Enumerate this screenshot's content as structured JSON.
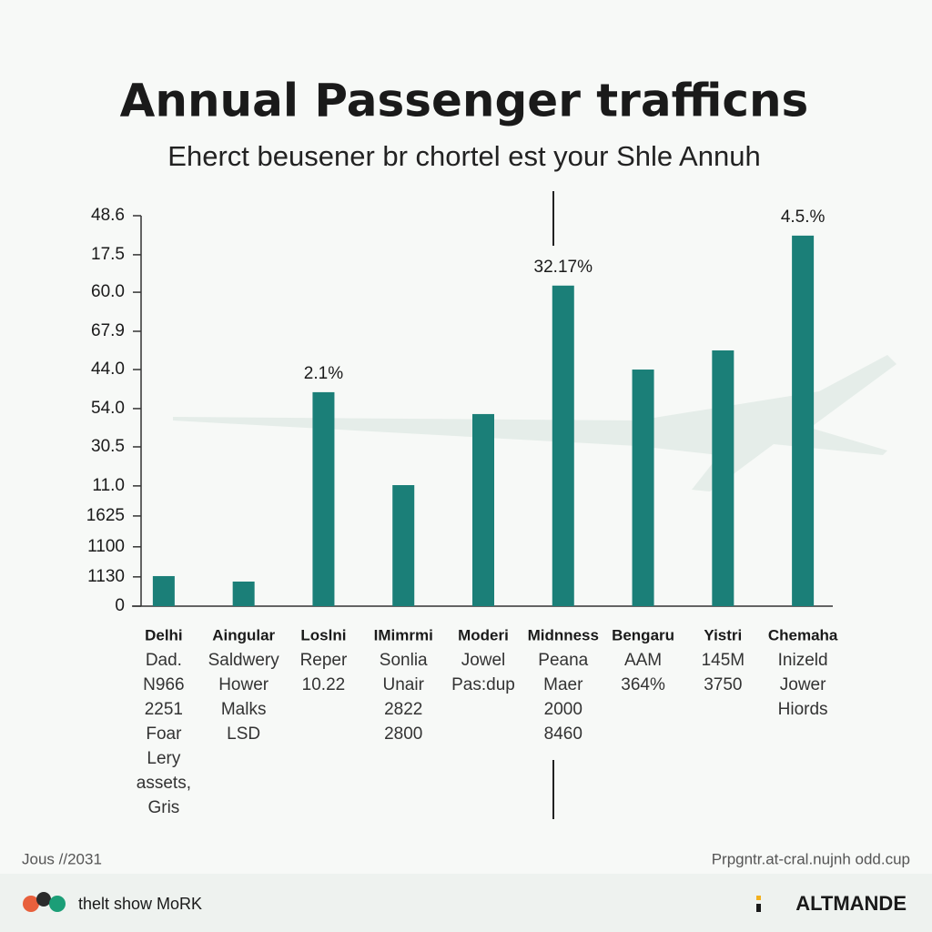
{
  "chart_data": {
    "type": "bar",
    "title": "Annual Passenger trafficns",
    "subtitle": "Eherct beusener br chortel est your Shle Annuh",
    "color": "#1b7f78",
    "categories": [
      "Delhi",
      "Aingular",
      "Loslni",
      "IMimrmi",
      "Moderi",
      "Midnness",
      "Bengaru",
      "Yistri",
      "Chemaha"
    ],
    "details": [
      [
        "Dad.",
        "N966",
        "2251",
        "Foar",
        "Lery",
        "assets,",
        "Gris"
      ],
      [
        "Saldwery",
        "Hower",
        "Malks",
        "LSD"
      ],
      [
        "Reper",
        "10.22"
      ],
      [
        "Sonlia",
        "Unair",
        "2822",
        "2800"
      ],
      [
        "Jowel",
        "Pas:dup"
      ],
      [
        "Peana",
        "Maer",
        "2000",
        "8460"
      ],
      [
        "AAM",
        "364%"
      ],
      [
        "145M",
        "3750"
      ],
      [
        "Inizeld",
        "Jower",
        "Hiords"
      ]
    ],
    "values": [
      7.7,
      6.3,
      54.8,
      31.0,
      49.2,
      82.1,
      60.6,
      65.5,
      94.9
    ],
    "annotations": [
      {
        "text": "2.1%",
        "category": "Loslni"
      },
      {
        "text": "32.17%",
        "category": "Midnness"
      },
      {
        "text": "4.5.%",
        "category": "Chemaha"
      }
    ],
    "ylim": [
      0,
      100
    ],
    "yticks": [
      0,
      {
        "value": 7.5,
        "label": "1130"
      },
      {
        "value": 15.2,
        "label": "1100"
      },
      {
        "value": 23.1,
        "label": "1625"
      },
      {
        "value": 30.8,
        "label": "11.0"
      },
      {
        "value": 40.8,
        "label": "30.5"
      },
      {
        "value": 50.6,
        "label": "54.0"
      },
      {
        "value": 60.6,
        "label": "44.0"
      },
      {
        "value": 70.4,
        "label": "67.9"
      },
      {
        "value": 80.4,
        "label": "60.0"
      },
      {
        "value": 90.0,
        "label": "17.5"
      },
      {
        "value": 100,
        "label": "48.6"
      }
    ],
    "grid": false
  },
  "footer": {
    "date": "Jous //2031",
    "source": "Prpgntr.at-cral.nujnh odd.cup",
    "logo": "thelt show MoRK",
    "brand": "ALTMANDE"
  }
}
